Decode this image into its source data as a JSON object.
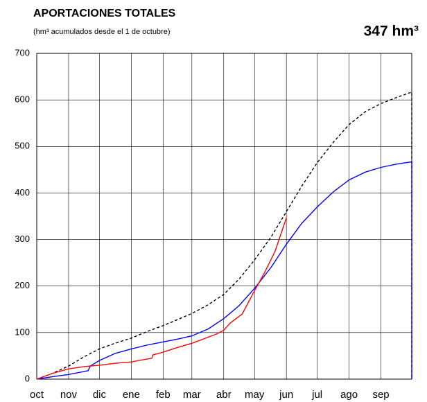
{
  "chart_data": {
    "type": "line",
    "title": "APORTACIONES TOTALES",
    "subtitle": "(hm³ acumulados desde el 1 de octubre)",
    "annotation": "347 hm³",
    "xlim": [
      0,
      365
    ],
    "xticks": [
      {
        "value": 0,
        "label": "oct"
      },
      {
        "value": 31,
        "label": "nov"
      },
      {
        "value": 61,
        "label": "dic"
      },
      {
        "value": 92,
        "label": "ene"
      },
      {
        "value": 123,
        "label": "feb"
      },
      {
        "value": 151,
        "label": "mar"
      },
      {
        "value": 182,
        "label": "abr"
      },
      {
        "value": 212,
        "label": "may"
      },
      {
        "value": 243,
        "label": "jun"
      },
      {
        "value": 273,
        "label": "jul"
      },
      {
        "value": 304,
        "label": "ago"
      },
      {
        "value": 335,
        "label": "sep"
      }
    ],
    "ylim": [
      0,
      700
    ],
    "yticks": [
      0,
      100,
      200,
      300,
      400,
      500,
      600,
      700
    ],
    "grid": true,
    "series": [
      {
        "color": "#000000",
        "dashed": true,
        "x": [
          0,
          15,
          31,
          46,
          61,
          76,
          92,
          107,
          123,
          137,
          151,
          167,
          182,
          197,
          212,
          228,
          243,
          258,
          273,
          289,
          304,
          320,
          335,
          350,
          365,
          365
        ],
        "values": [
          0,
          12,
          28,
          48,
          65,
          77,
          88,
          102,
          115,
          128,
          141,
          160,
          182,
          215,
          256,
          305,
          360,
          415,
          465,
          510,
          547,
          575,
          592,
          605,
          617,
          0
        ]
      },
      {
        "color": "#0000ff",
        "dashed": false,
        "x": [
          0,
          15,
          31,
          50,
          52,
          61,
          76,
          92,
          107,
          123,
          137,
          151,
          167,
          182,
          197,
          212,
          228,
          243,
          258,
          273,
          289,
          304,
          320,
          335,
          350,
          365,
          365
        ],
        "values": [
          0,
          5,
          10,
          18,
          28,
          40,
          55,
          65,
          73,
          80,
          86,
          93,
          108,
          130,
          158,
          195,
          240,
          290,
          335,
          370,
          403,
          428,
          445,
          455,
          462,
          467,
          0
        ]
      },
      {
        "color": "#ff0000",
        "dashed": false,
        "x": [
          0,
          15,
          31,
          46,
          61,
          76,
          92,
          112,
          113,
          123,
          137,
          151,
          163,
          175,
          182,
          188,
          200,
          212,
          222,
          232,
          243
        ],
        "values": [
          0,
          12,
          22,
          27,
          30,
          34,
          37,
          45,
          52,
          58,
          68,
          77,
          87,
          97,
          105,
          120,
          140,
          190,
          230,
          275,
          347
        ]
      }
    ]
  }
}
